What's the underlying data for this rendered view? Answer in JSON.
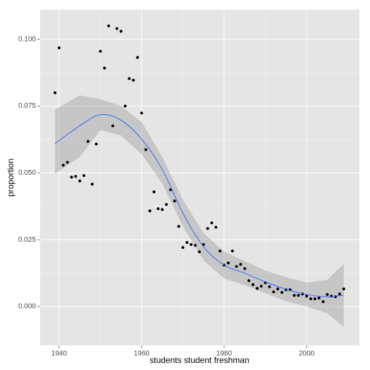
{
  "chart_data": {
    "type": "scatter",
    "x_label": "students student freshman",
    "y_label": "proportion",
    "xlim": [
      1935.4,
      2012.8
    ],
    "ylim": [
      -0.0145,
      0.111
    ],
    "xticks": [
      1940,
      1960,
      1980,
      2000
    ],
    "yticks": [
      {
        "value": 0,
        "label": "0.000"
      },
      {
        "value": 0.025,
        "label": "0.025"
      },
      {
        "value": 0.05,
        "label": "0.050"
      },
      {
        "value": 0.075,
        "label": "0.075"
      },
      {
        "value": 0.1,
        "label": "0.100"
      }
    ],
    "grid": true,
    "minor_grid": true,
    "panel_color": "#e5e5e5",
    "points": {
      "color": "#000000",
      "x": [
        1939,
        1940,
        1941,
        1942,
        1943,
        1944,
        1945,
        1946,
        1947,
        1948,
        1949,
        1950,
        1951,
        1952,
        1953,
        1954,
        1955,
        1956,
        1957,
        1958,
        1959,
        1960,
        1961,
        1962,
        1963,
        1964,
        1965,
        1966,
        1967,
        1968,
        1969,
        1970,
        1971,
        1972,
        1973,
        1974,
        1975,
        1976,
        1977,
        1978,
        1979,
        1980,
        1981,
        1982,
        1983,
        1984,
        1985,
        1986,
        1987,
        1988,
        1989,
        1990,
        1991,
        1992,
        1993,
        1994,
        1995,
        1996,
        1997,
        1998,
        1999,
        2000,
        2001,
        2002,
        2003,
        2004,
        2005,
        2006,
        2007,
        2008,
        2009
      ],
      "values": [
        0.08,
        0.0968,
        0.0529,
        0.054,
        0.0484,
        0.0487,
        0.047,
        0.049,
        0.0618,
        0.0458,
        0.0608,
        0.0955,
        0.0892,
        0.105,
        0.0676,
        0.104,
        0.103,
        0.075,
        0.0853,
        0.0847,
        0.0932,
        0.0724,
        0.0587,
        0.0358,
        0.0429,
        0.0366,
        0.0363,
        0.0382,
        0.0437,
        0.0395,
        0.03,
        0.0221,
        0.024,
        0.0232,
        0.0229,
        0.0205,
        0.0232,
        0.0292,
        0.0313,
        0.0297,
        0.0208,
        0.0155,
        0.0163,
        0.0208,
        0.015,
        0.0158,
        0.0142,
        0.0097,
        0.0082,
        0.0068,
        0.0076,
        0.0089,
        0.0074,
        0.0055,
        0.0066,
        0.0053,
        0.0063,
        0.0063,
        0.0042,
        0.0042,
        0.0047,
        0.0039,
        0.0029,
        0.0029,
        0.0032,
        0.0018,
        0.0045,
        0.0039,
        0.0037,
        0.0047,
        0.0066
      ]
    },
    "smooth": {
      "color": "#3366ff",
      "band_color": "#999999",
      "x": [
        1939,
        1945,
        1950,
        1955,
        1960,
        1965,
        1970,
        1975,
        1980,
        1985,
        1990,
        1995,
        2000,
        2005,
        2009
      ],
      "values": [
        0.061,
        0.0676,
        0.0718,
        0.0697,
        0.0626,
        0.0513,
        0.035,
        0.0224,
        0.0155,
        0.0125,
        0.0092,
        0.0065,
        0.0045,
        0.0037,
        0.0043
      ],
      "lower": [
        0.0497,
        0.056,
        0.066,
        0.064,
        0.057,
        0.046,
        0.03,
        0.0173,
        0.0105,
        0.008,
        0.005,
        0.002,
        0.0,
        -0.0025,
        -0.0076
      ],
      "upper": [
        0.0737,
        0.079,
        0.0776,
        0.075,
        0.069,
        0.056,
        0.04,
        0.0275,
        0.0205,
        0.017,
        0.0135,
        0.011,
        0.009,
        0.01,
        0.016
      ]
    }
  }
}
